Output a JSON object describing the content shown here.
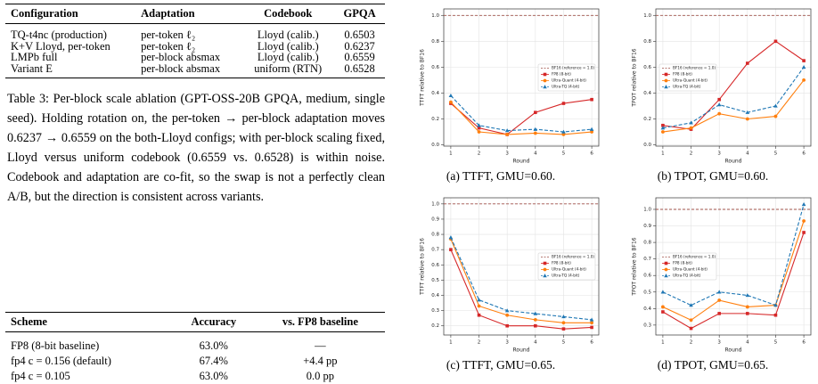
{
  "table1": {
    "header": [
      "Configuration",
      "Adaptation",
      "Codebook",
      "GPQA"
    ],
    "rows": [
      [
        "TQ-t4nc (production)",
        "per-token ℓ₂",
        "Lloyd (calib.)",
        "0.6503"
      ],
      [
        "K+V Lloyd, per-token",
        "per-token ℓ₂",
        "Lloyd (calib.)",
        "0.6237"
      ],
      [
        "LMPb full",
        "per-block absmax",
        "Lloyd (calib.)",
        "0.6559"
      ],
      [
        "Variant E",
        "per-block absmax",
        "uniform (RTN)",
        "0.6528"
      ]
    ]
  },
  "caption": "Table 3: Per-block scale ablation (GPT-OSS-20B GPQA, medium, single seed). Holding rotation on, the per-token → per-block adaptation moves 0.6237 → 0.6559 on the both-Lloyd configs; with per-block scaling fixed, Lloyd versus uniform codebook (0.6559 vs. 0.6528) is within noise. Codebook and adaptation are co-fit, so the swap is not a perfectly clean A/B, but the direction is consistent across variants.",
  "table2": {
    "header": [
      "Scheme",
      "Accuracy",
      "vs. FP8 baseline"
    ],
    "rows": [
      [
        "FP8 (8-bit baseline)",
        "63.0%",
        "—"
      ],
      [
        "fp4 c = 0.156 (default)",
        "67.4%",
        "+4.4 pp"
      ],
      [
        "fp4 c = 0.105",
        "63.0%",
        "0.0 pp"
      ]
    ]
  },
  "chart_data": [
    {
      "type": "line",
      "caption": "(a) TTFT, GMU=0.60.",
      "y_label": "TTFT relative to BF16",
      "x_label": "Round",
      "x": [
        1,
        2,
        3,
        4,
        5,
        6
      ],
      "xlim": [
        0.75,
        6.25
      ],
      "xticks": [
        1,
        2,
        3,
        4,
        5,
        6
      ],
      "ylim": [
        -0.01,
        1.05
      ],
      "yticks": [
        {
          "value": 0,
          "label": "0.0"
        },
        0.2,
        0.4,
        0.6,
        0.8,
        {
          "value": 1,
          "label": "1.0"
        }
      ],
      "grid": true,
      "legend": "center right",
      "reference_line": {
        "name": "BF16 (reference = 1.0)",
        "value": 1.0,
        "color": "#a0524a"
      },
      "series": [
        {
          "name": "FP8 (8-bit)",
          "color": "#d62728",
          "marker": "square",
          "linestyle": "solid",
          "values": [
            0.32,
            0.13,
            0.08,
            0.25,
            0.32,
            0.35
          ]
        },
        {
          "name": "Ultra-Quant (4-bit)",
          "color": "#ff7f0e",
          "marker": "circle",
          "linestyle": "solid",
          "values": [
            0.33,
            0.1,
            0.08,
            0.09,
            0.08,
            0.1
          ]
        },
        {
          "name": "Ultra-TQ (4-bit)",
          "color": "#1f77b4",
          "marker": "triangle",
          "linestyle": "dashed",
          "values": [
            0.38,
            0.15,
            0.11,
            0.12,
            0.1,
            0.12
          ]
        }
      ]
    },
    {
      "type": "line",
      "caption": "(b) TPOT, GMU=0.60.",
      "y_label": "TPOT relative to BF16",
      "x_label": "Round",
      "x": [
        1,
        2,
        3,
        4,
        5,
        6
      ],
      "xlim": [
        0.75,
        6.25
      ],
      "xticks": [
        1,
        2,
        3,
        4,
        5,
        6
      ],
      "ylim": [
        -0.01,
        1.05
      ],
      "yticks": [
        {
          "value": 0,
          "label": "0.0"
        },
        0.2,
        0.4,
        0.6,
        0.8,
        {
          "value": 1,
          "label": "1.0"
        }
      ],
      "grid": true,
      "legend": "center left",
      "reference_line": {
        "name": "BF16 (reference = 1.0)",
        "value": 1.0,
        "color": "#a0524a"
      },
      "series": [
        {
          "name": "FP8 (8-bit)",
          "color": "#d62728",
          "marker": "square",
          "linestyle": "solid",
          "values": [
            0.15,
            0.12,
            0.35,
            0.63,
            0.8,
            0.65
          ]
        },
        {
          "name": "Ultra-Quant (4-bit)",
          "color": "#ff7f0e",
          "marker": "circle",
          "linestyle": "solid",
          "values": [
            0.1,
            0.13,
            0.24,
            0.2,
            0.22,
            0.5
          ]
        },
        {
          "name": "Ultra-TQ (4-bit)",
          "color": "#1f77b4",
          "marker": "triangle",
          "linestyle": "dashed",
          "values": [
            0.13,
            0.17,
            0.31,
            0.25,
            0.3,
            0.6
          ]
        }
      ]
    },
    {
      "type": "line",
      "caption": "(c) TTFT, GMU=0.65.",
      "y_label": "TTFT relative to BF16",
      "x_label": "Round",
      "x": [
        1,
        2,
        3,
        4,
        5,
        6
      ],
      "xlim": [
        0.75,
        6.25
      ],
      "xticks": [
        1,
        2,
        3,
        4,
        5,
        6
      ],
      "ylim": [
        0.14,
        1.04
      ],
      "yticks": [
        0.2,
        0.3,
        0.4,
        0.5,
        0.6,
        0.7,
        0.8,
        0.9,
        {
          "value": 1,
          "label": "1.0"
        }
      ],
      "grid": true,
      "legend": "center right",
      "reference_line": {
        "name": "BF16 (reference = 1.0)",
        "value": 1.0,
        "color": "#a0524a"
      },
      "series": [
        {
          "name": "FP8 (8-bit)",
          "color": "#d62728",
          "marker": "square",
          "linestyle": "solid",
          "values": [
            0.7,
            0.27,
            0.2,
            0.2,
            0.18,
            0.19
          ]
        },
        {
          "name": "Ultra-Quant (4-bit)",
          "color": "#ff7f0e",
          "marker": "circle",
          "linestyle": "solid",
          "values": [
            0.77,
            0.33,
            0.27,
            0.24,
            0.22,
            0.22
          ]
        },
        {
          "name": "Ultra-TQ (4-bit)",
          "color": "#1f77b4",
          "marker": "triangle",
          "linestyle": "dashed",
          "values": [
            0.78,
            0.37,
            0.3,
            0.28,
            0.26,
            0.24
          ]
        }
      ]
    },
    {
      "type": "line",
      "caption": "(d) TPOT, GMU=0.65.",
      "y_label": "TPOT relative to BF16",
      "x_label": "Round",
      "x": [
        1,
        2,
        3,
        4,
        5,
        6
      ],
      "xlim": [
        0.75,
        6.25
      ],
      "xticks": [
        1,
        2,
        3,
        4,
        5,
        6
      ],
      "ylim": [
        0.24,
        1.07
      ],
      "yticks": [
        0.3,
        0.4,
        0.5,
        0.6,
        0.7,
        0.8,
        0.9,
        {
          "value": 1,
          "label": "1.0"
        }
      ],
      "grid": true,
      "legend": "center left",
      "reference_line": {
        "name": "BF16 (reference = 1.0)",
        "value": 1.0,
        "color": "#a0524a"
      },
      "series": [
        {
          "name": "FP8 (8-bit)",
          "color": "#d62728",
          "marker": "square",
          "linestyle": "solid",
          "values": [
            0.38,
            0.28,
            0.37,
            0.37,
            0.36,
            0.86
          ]
        },
        {
          "name": "Ultra-Quant (4-bit)",
          "color": "#ff7f0e",
          "marker": "circle",
          "linestyle": "solid",
          "values": [
            0.41,
            0.33,
            0.45,
            0.41,
            0.42,
            0.93
          ]
        },
        {
          "name": "Ultra-TQ (4-bit)",
          "color": "#1f77b4",
          "marker": "triangle",
          "linestyle": "dashed",
          "values": [
            0.5,
            0.42,
            0.5,
            0.48,
            0.42,
            1.03
          ]
        }
      ]
    }
  ]
}
